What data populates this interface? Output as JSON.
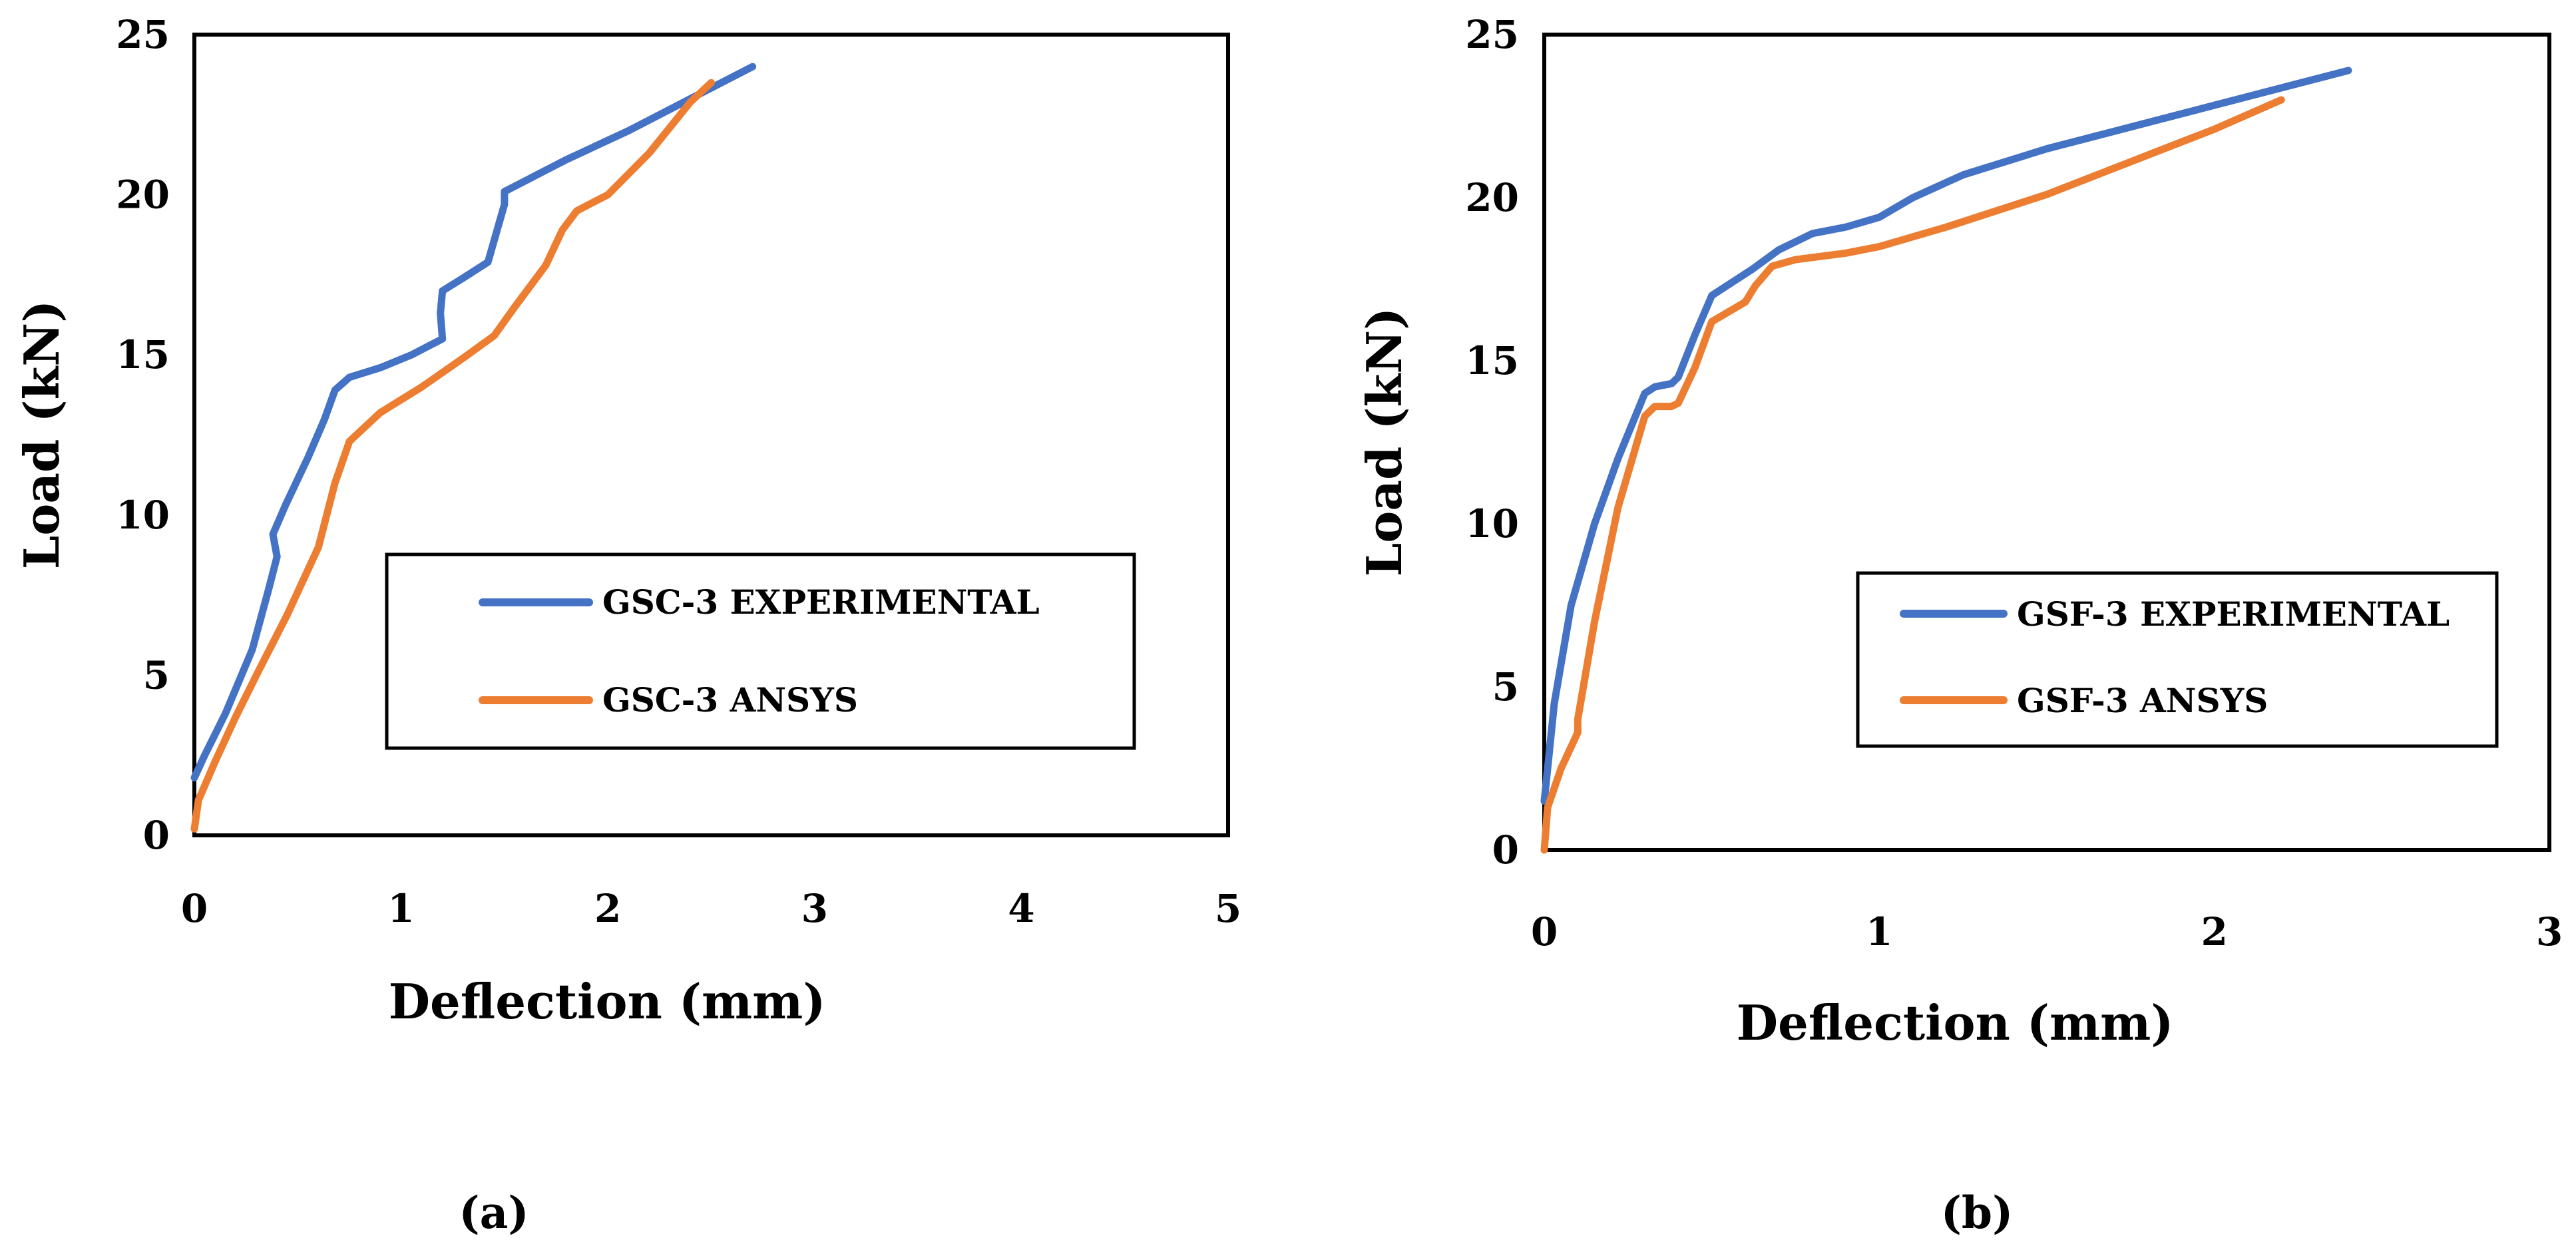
{
  "chart_data": [
    {
      "type": "line",
      "xlabel": "Deflection (mm)",
      "ylabel": "Load (kN)",
      "xlim": [
        0,
        5
      ],
      "ylim": [
        0,
        25
      ],
      "xticks": [
        "0",
        "1",
        "2",
        "3",
        "4",
        "5"
      ],
      "yticks": [
        "0",
        "5",
        "10",
        "15",
        "20",
        "25"
      ],
      "grid": false,
      "legend_position": "center-right",
      "caption": "(a)",
      "series": [
        {
          "name": "GSC-3 EXPERIMENTAL",
          "color": "#4472C4",
          "x": [
            0,
            0.05,
            0.15,
            0.28,
            0.36,
            0.4,
            0.38,
            0.44,
            0.55,
            0.63,
            0.68,
            0.75,
            0.9,
            1.05,
            1.2,
            1.19,
            1.2,
            1.3,
            1.42,
            1.5,
            1.5,
            1.56,
            1.8,
            2.1,
            2.4,
            2.7
          ],
          "y": [
            1.8,
            2.5,
            3.8,
            5.8,
            7.7,
            8.7,
            9.4,
            10.3,
            11.8,
            13.0,
            13.9,
            14.3,
            14.6,
            15.0,
            15.5,
            16.3,
            17.0,
            17.4,
            17.9,
            19.7,
            20.1,
            20.3,
            21.1,
            22.0,
            23.0,
            24.0
          ]
        },
        {
          "name": "GSC-3 ANSYS",
          "color": "#ED7D31",
          "x": [
            0,
            0.02,
            0.1,
            0.2,
            0.3,
            0.45,
            0.6,
            0.68,
            0.75,
            0.9,
            1.1,
            1.3,
            1.45,
            1.55,
            1.7,
            1.78,
            1.85,
            2.0,
            2.2,
            2.4,
            2.5
          ],
          "y": [
            0.2,
            1.1,
            2.3,
            3.7,
            5.0,
            6.9,
            9.0,
            11.0,
            12.3,
            13.2,
            14.0,
            14.9,
            15.6,
            16.5,
            17.8,
            18.9,
            19.5,
            20.0,
            21.3,
            22.9,
            23.5
          ]
        }
      ]
    },
    {
      "type": "line",
      "xlabel": "Deflection (mm)",
      "ylabel": "Load (kN)",
      "xlim": [
        0,
        3
      ],
      "ylim": [
        0,
        25
      ],
      "xticks": [
        "0",
        "1",
        "2",
        "3"
      ],
      "yticks": [
        "0",
        "5",
        "10",
        "15",
        "20",
        "25"
      ],
      "grid": false,
      "legend_position": "center-right",
      "caption": "(b)",
      "series": [
        {
          "name": "GSF-3 EXPERIMENTAL",
          "color": "#4472C4",
          "x": [
            0,
            0.03,
            0.08,
            0.15,
            0.22,
            0.3,
            0.33,
            0.38,
            0.4,
            0.45,
            0.5,
            0.56,
            0.62,
            0.7,
            0.8,
            0.9,
            1.0,
            1.1,
            1.25,
            1.5,
            1.8,
            2.1,
            2.4
          ],
          "y": [
            1.5,
            4.5,
            7.5,
            10.0,
            12.0,
            14.0,
            14.2,
            14.3,
            14.5,
            15.8,
            17.0,
            17.4,
            17.8,
            18.4,
            18.9,
            19.1,
            19.4,
            20.0,
            20.7,
            21.5,
            22.3,
            23.1,
            23.9
          ]
        },
        {
          "name": "GSF-3 ANSYS",
          "color": "#ED7D31",
          "x": [
            0,
            0.01,
            0.05,
            0.1,
            0.1,
            0.15,
            0.22,
            0.3,
            0.33,
            0.38,
            0.4,
            0.45,
            0.5,
            0.55,
            0.6,
            0.63,
            0.68,
            0.75,
            0.9,
            1.0,
            1.2,
            1.5,
            1.8,
            2.0,
            2.2
          ],
          "y": [
            0,
            1.3,
            2.5,
            3.6,
            4.0,
            7.0,
            10.5,
            13.3,
            13.6,
            13.6,
            13.7,
            14.8,
            16.2,
            16.5,
            16.8,
            17.3,
            17.9,
            18.1,
            18.3,
            18.5,
            19.1,
            20.1,
            21.3,
            22.1,
            23.0
          ]
        }
      ]
    }
  ]
}
